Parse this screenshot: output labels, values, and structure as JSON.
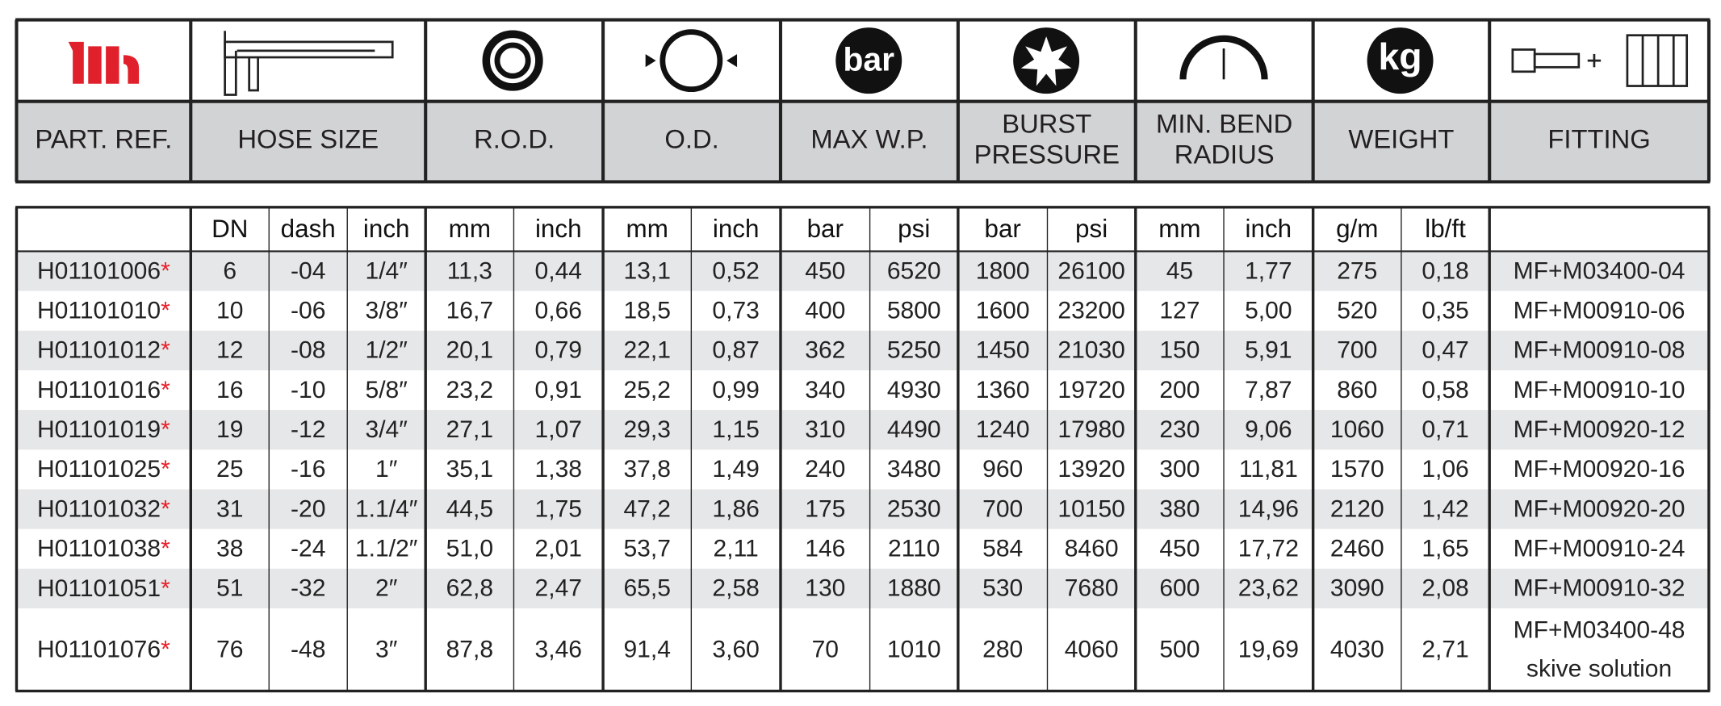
{
  "header": {
    "labels": [
      [
        "PART. REF."
      ],
      [
        "HOSE SIZE"
      ],
      [
        "R.O.D."
      ],
      [
        "O.D."
      ],
      [
        "MAX W.P."
      ],
      [
        "BURST",
        "PRESSURE"
      ],
      [
        "MIN. BEND",
        "RADIUS"
      ],
      [
        "WEIGHT"
      ],
      [
        "FITTING"
      ]
    ]
  },
  "icons": {
    "pressure": "bar",
    "weight": "kg"
  },
  "table": {
    "units": [
      "DN",
      "dash",
      "inch",
      "mm",
      "inch",
      "mm",
      "inch",
      "bar",
      "psi",
      "bar",
      "psi",
      "mm",
      "inch",
      "g/m",
      "lb/ft"
    ],
    "marker": "*",
    "rows": [
      [
        "H01101006",
        "6",
        "-04",
        "1/4″",
        "11,3",
        "0,44",
        "13,1",
        "0,52",
        "450",
        "6520",
        "1800",
        "26100",
        "45",
        "1,77",
        "275",
        "0,18",
        "MF+M03400-04"
      ],
      [
        "H01101010",
        "10",
        "-06",
        "3/8″",
        "16,7",
        "0,66",
        "18,5",
        "0,73",
        "400",
        "5800",
        "1600",
        "23200",
        "127",
        "5,00",
        "520",
        "0,35",
        "MF+M00910-06"
      ],
      [
        "H01101012",
        "12",
        "-08",
        "1/2″",
        "20,1",
        "0,79",
        "22,1",
        "0,87",
        "362",
        "5250",
        "1450",
        "21030",
        "150",
        "5,91",
        "700",
        "0,47",
        "MF+M00910-08"
      ],
      [
        "H01101016",
        "16",
        "-10",
        "5/8″",
        "23,2",
        "0,91",
        "25,2",
        "0,99",
        "340",
        "4930",
        "1360",
        "19720",
        "200",
        "7,87",
        "860",
        "0,58",
        "MF+M00910-10"
      ],
      [
        "H01101019",
        "19",
        "-12",
        "3/4″",
        "27,1",
        "1,07",
        "29,3",
        "1,15",
        "310",
        "4490",
        "1240",
        "17980",
        "230",
        "9,06",
        "1060",
        "0,71",
        "MF+M00920-12"
      ],
      [
        "H01101025",
        "25",
        "-16",
        "1″",
        "35,1",
        "1,38",
        "37,8",
        "1,49",
        "240",
        "3480",
        "960",
        "13920",
        "300",
        "11,81",
        "1570",
        "1,06",
        "MF+M00920-16"
      ],
      [
        "H01101032",
        "31",
        "-20",
        "1.1/4″",
        "44,5",
        "1,75",
        "47,2",
        "1,86",
        "175",
        "2530",
        "700",
        "10150",
        "380",
        "14,96",
        "2120",
        "1,42",
        "MF+M00920-20"
      ],
      [
        "H01101038",
        "38",
        "-24",
        "1.1/2″",
        "51,0",
        "2,01",
        "53,7",
        "2,11",
        "146",
        "2110",
        "584",
        "8460",
        "450",
        "17,72",
        "2460",
        "1,65",
        "MF+M00910-24"
      ],
      [
        "H01101051",
        "51",
        "-32",
        "2″",
        "62,8",
        "2,47",
        "65,5",
        "2,58",
        "130",
        "1880",
        "530",
        "7680",
        "600",
        "23,62",
        "3090",
        "2,08",
        "MF+M00910-32"
      ],
      [
        "H01101076",
        "76",
        "-48",
        "3″",
        "87,8",
        "3,46",
        "91,4",
        "3,60",
        "70",
        "1010",
        "280",
        "4060",
        "500",
        "19,69",
        "4030",
        "2,71",
        [
          "MF+M03400-48",
          "skive solution"
        ]
      ]
    ]
  }
}
